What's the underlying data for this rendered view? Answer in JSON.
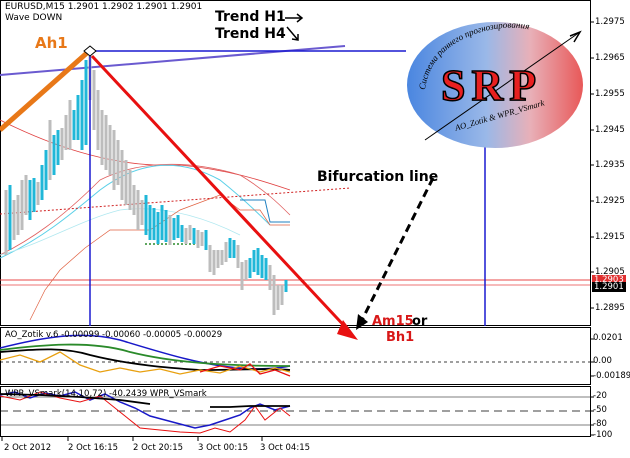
{
  "header": {
    "symbol_line": "EURUSD,M15  1.2901 1.2902 1.2901 1.2901",
    "wave_label": "Wave DOWN"
  },
  "annotations": {
    "ah1": "Ah1",
    "trend_h1": "Trend H1",
    "trend_h4": "Trend H4",
    "bifurcation": "Bifurcation line",
    "am15": "Am15",
    "or": "or",
    "bh1": "Bh1"
  },
  "logo": {
    "letters": "SRP",
    "arc_text": "Система раннего прогнозирования",
    "authors": "AO_Zotik & WPR_VSmark"
  },
  "price_axis": {
    "ticks": [
      "1.2975",
      "1.2965",
      "1.2955",
      "1.2945",
      "1.2935",
      "1.2925",
      "1.2915",
      "1.2905",
      "1.2895"
    ],
    "tag_red": "1.2903",
    "tag_black": "1.2901"
  },
  "ao_panel": {
    "header": "AO_Zotik v.6 -0.00099 -0.00060 -0.00005 -0.00029",
    "ticks": [
      "0.0201",
      "0.00",
      "-0.00189"
    ]
  },
  "wpr_panel": {
    "header": "WPR_VSmark(14,10,72) -40.2439  WPR_VSmark",
    "ticks": [
      "-20",
      "-50",
      "-80",
      "-100"
    ]
  },
  "time_axis": [
    "2 Oct 2012",
    "2 Oct 16:15",
    "2 Oct 20:15",
    "3 Oct 00:15",
    "3 Oct 04:15"
  ],
  "colors": {
    "bull_bar": "#20b7d8",
    "bear_bar": "#bdbdbd",
    "trend_line": "#e0181c",
    "blue_line": "#1010c0",
    "orange_line": "#e87818"
  }
}
